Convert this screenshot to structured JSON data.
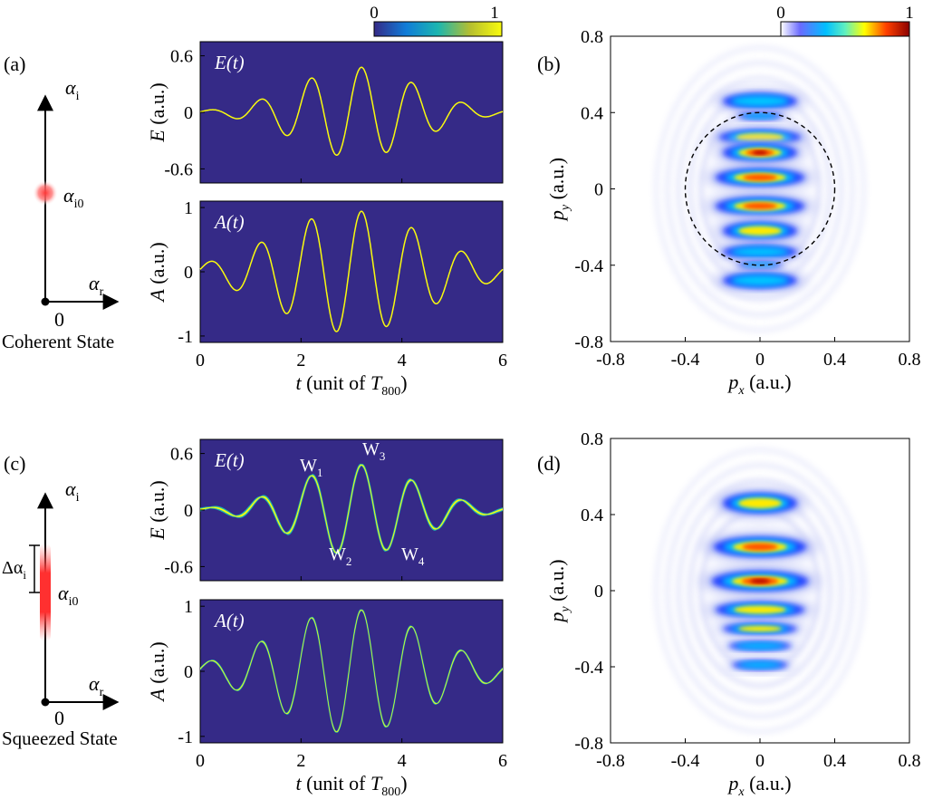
{
  "panel_labels": {
    "a": "(a)",
    "b": "(b)",
    "c": "(c)",
    "d": "(d)"
  },
  "phase_space": {
    "top": {
      "alpha_i": "α",
      "alpha_i_sub": "i",
      "alpha_r": "α",
      "alpha_r_sub": "r",
      "point": "α",
      "point_sub": "i0",
      "origin": "0",
      "caption": "Coherent State"
    },
    "bottom": {
      "alpha_i": "α",
      "alpha_i_sub": "i",
      "alpha_r": "α",
      "alpha_r_sub": "r",
      "point": "α",
      "point_sub": "i0",
      "delta": "Δα",
      "delta_sub": "i",
      "origin": "0",
      "caption": "Squeezed State"
    }
  },
  "colorbar_a": {
    "min": "0",
    "max": "1"
  },
  "colorbar_b": {
    "min": "0",
    "max": "1"
  },
  "field_labels": {
    "E_panel": "E(t)",
    "A_panel": "A(t)",
    "E_axis": "E (a.u.)",
    "A_axis": "A (a.u.)",
    "x_axis": "t (unit of T",
    "x_axis_sub": "800",
    "x_axis_close": ")"
  },
  "peak_labels": [
    {
      "name": "W",
      "sub": "1"
    },
    {
      "name": "W",
      "sub": "2"
    },
    {
      "name": "W",
      "sub": "3"
    },
    {
      "name": "W",
      "sub": "4"
    }
  ],
  "momentum_labels": {
    "px": "p",
    "px_sub": "x",
    "px_unit": " (a.u.)",
    "py": "p",
    "py_sub": "y",
    "py_unit": " (a.u.)"
  },
  "chart_data": [
    {
      "type": "heatmap",
      "panel": "(a) upper",
      "title": "E(t)",
      "ylabel": "E (a.u.)",
      "xlim": [
        0,
        6
      ],
      "ylim": [
        -0.75,
        0.75
      ],
      "xticks": [
        "0",
        "2",
        "4",
        "6"
      ],
      "yticks": [
        "0.6",
        "0",
        "-0.6"
      ],
      "peaks": [
        [
          1,
          0.2
        ],
        [
          1.3,
          -0.33
        ],
        [
          2,
          0.43
        ],
        [
          2.3,
          -0.5
        ],
        [
          3,
          0.48
        ],
        [
          3.3,
          -0.45
        ],
        [
          4,
          0.33
        ],
        [
          4.3,
          -0.3
        ]
      ]
    },
    {
      "type": "heatmap",
      "panel": "(a) lower",
      "title": "A(t)",
      "ylabel": "A (a.u.)",
      "xlabel": "t (unit of T800)",
      "xlim": [
        0,
        6
      ],
      "ylim": [
        -1.1,
        1.1
      ],
      "xticks": [
        "0",
        "2",
        "4",
        "6"
      ],
      "yticks": [
        "1",
        "0",
        "-1"
      ],
      "peaks": [
        [
          1,
          0.44
        ],
        [
          1.5,
          -0.62
        ],
        [
          2.2,
          0.82
        ],
        [
          2.7,
          -0.92
        ],
        [
          3.2,
          0.92
        ],
        [
          3.7,
          -0.82
        ],
        [
          4.2,
          0.63
        ],
        [
          4.7,
          -0.44
        ]
      ]
    },
    {
      "type": "heatmap",
      "panel": "(b)",
      "xlabel": "px (a.u.)",
      "ylabel": "py (a.u.)",
      "xlim": [
        -0.8,
        0.8
      ],
      "ylim": [
        -0.8,
        0.8
      ],
      "xticks": [
        "-0.8",
        "-0.4",
        "0",
        "0.4",
        "0.8"
      ],
      "yticks": [
        "0.8",
        "0.4",
        "0",
        "-0.4",
        "-0.8"
      ],
      "circle_radius": 0.4
    },
    {
      "type": "heatmap",
      "panel": "(c) upper",
      "title": "E(t)",
      "ylabel": "E (a.u.)",
      "xlim": [
        0,
        6
      ],
      "ylim": [
        -0.75,
        0.75
      ],
      "xticks": [
        "0",
        "2",
        "4",
        "6"
      ],
      "yticks": [
        "0.6",
        "0",
        "-0.6"
      ]
    },
    {
      "type": "heatmap",
      "panel": "(c) lower",
      "title": "A(t)",
      "ylabel": "A (a.u.)",
      "xlabel": "t (unit of T800)",
      "xlim": [
        0,
        6
      ],
      "ylim": [
        -1.1,
        1.1
      ],
      "xticks": [
        "0",
        "2",
        "4",
        "6"
      ],
      "yticks": [
        "1",
        "0",
        "-1"
      ]
    },
    {
      "type": "heatmap",
      "panel": "(d)",
      "xlabel": "px (a.u.)",
      "ylabel": "py (a.u.)",
      "xlim": [
        -0.8,
        0.8
      ],
      "ylim": [
        -0.8,
        0.8
      ],
      "xticks": [
        "-0.8",
        "-0.4",
        "0",
        "0.4",
        "0.8"
      ],
      "yticks": [
        "0.8",
        "0.4",
        "0",
        "-0.4",
        "-0.8"
      ]
    }
  ]
}
